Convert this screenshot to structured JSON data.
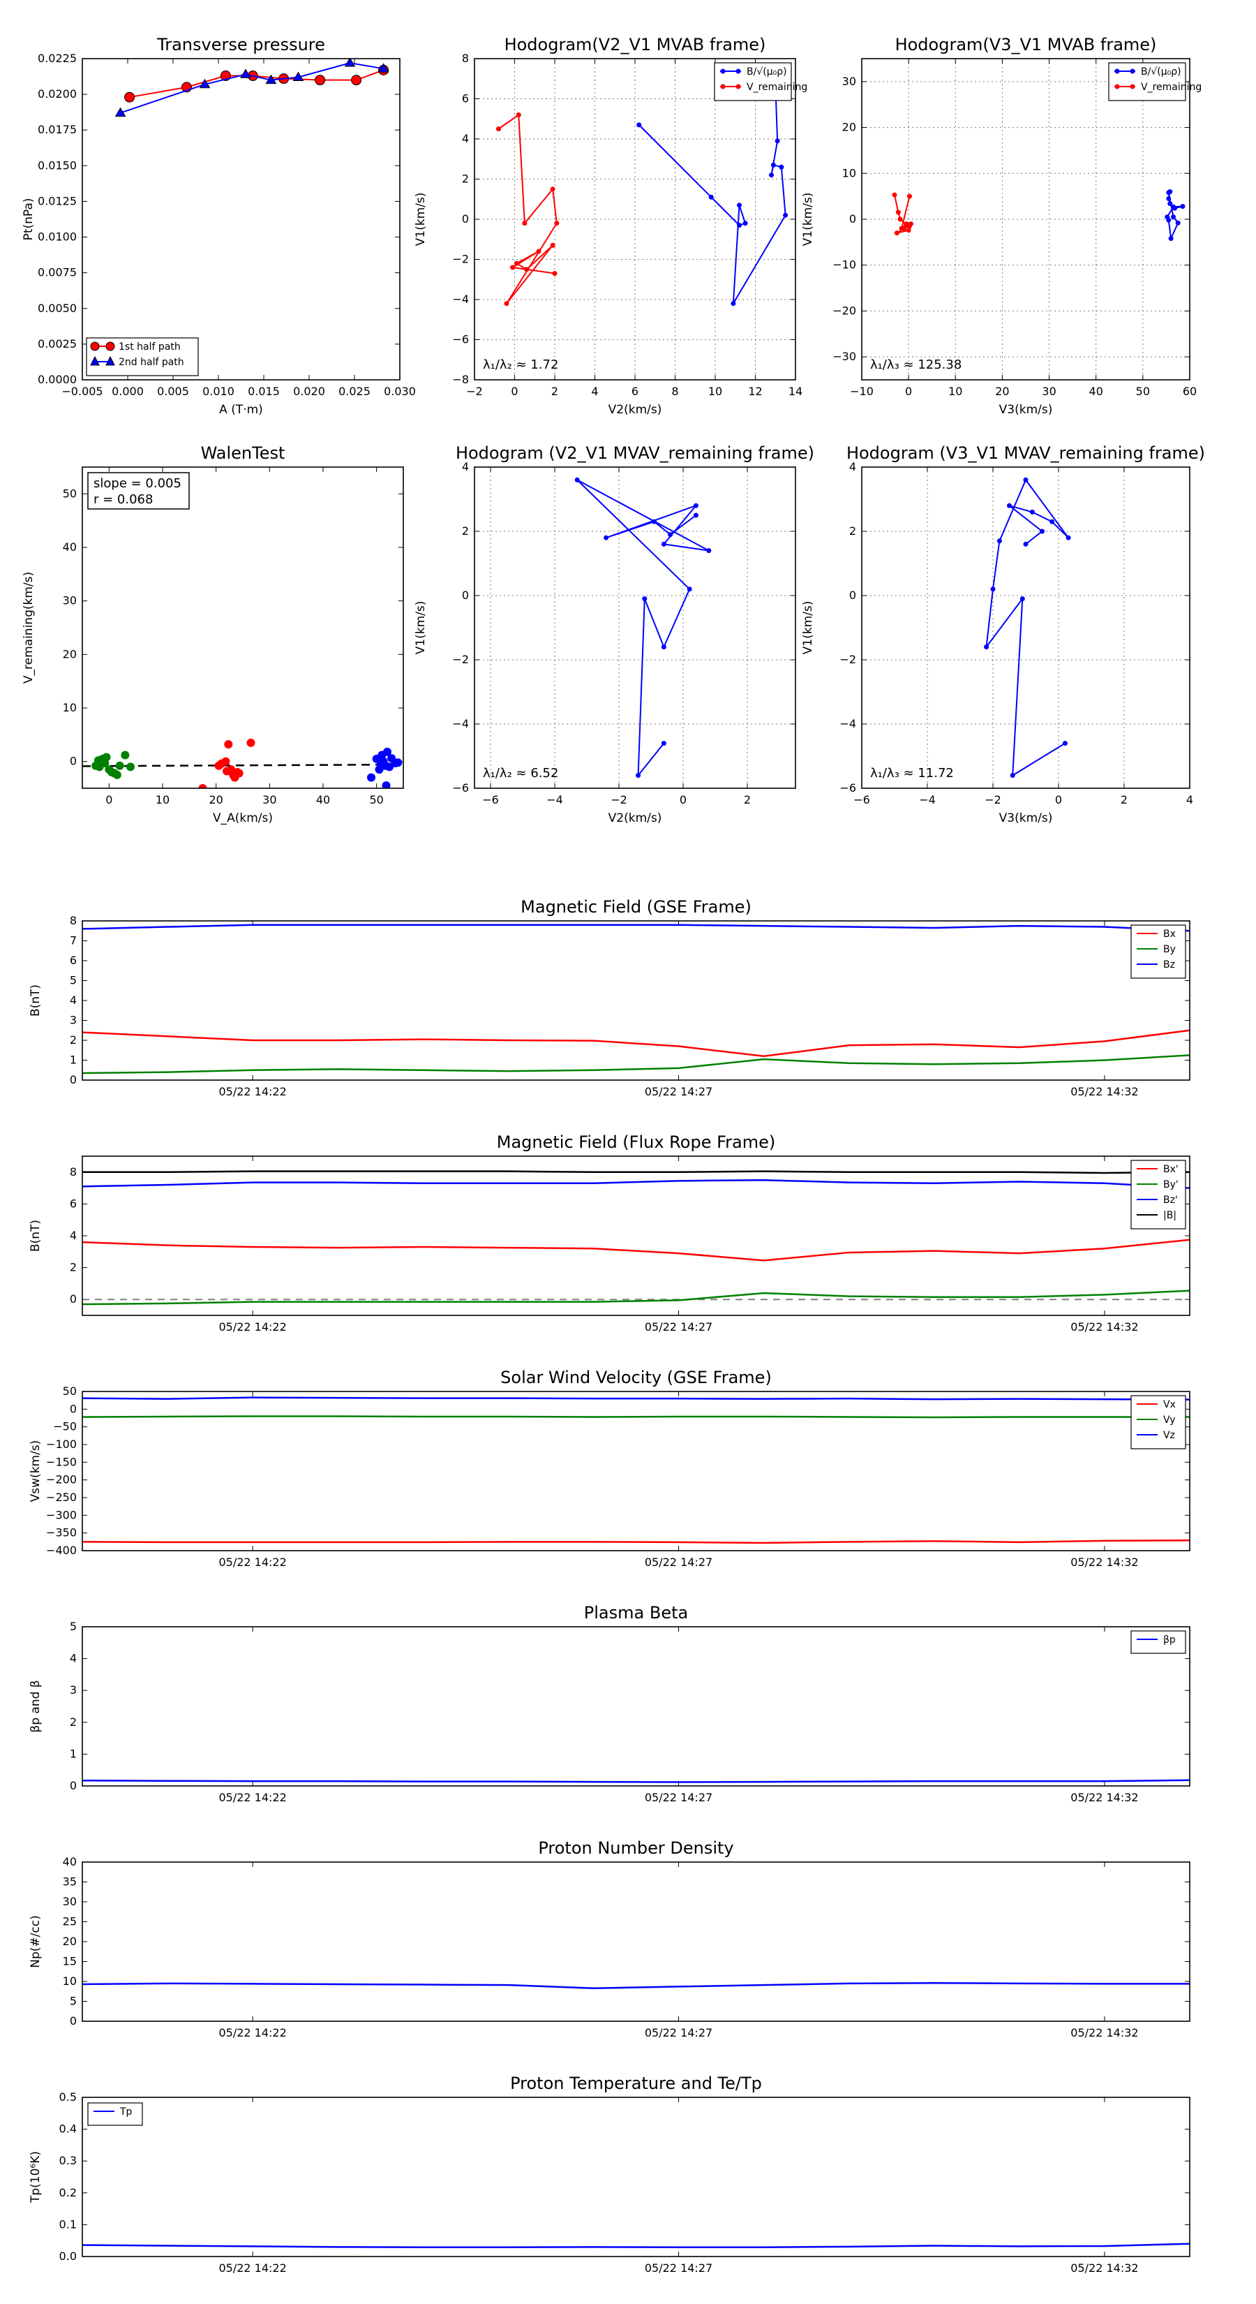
{
  "chart_data": [
    {
      "id": "tp",
      "type": "scatter",
      "title": "Transverse pressure",
      "xlabel": "A (T·m)",
      "ylabel": "Pt(nPa)",
      "xlim": [
        -0.005,
        0.03
      ],
      "ylim": [
        0,
        0.0225
      ],
      "xticks": [
        "−0.005",
        "0.000",
        "0.005",
        "0.010",
        "0.015",
        "0.020",
        "0.025",
        "0.030"
      ],
      "yticks": [
        "0.0000",
        "0.0025",
        "0.0050",
        "0.0075",
        "0.0100",
        "0.0125",
        "0.0150",
        "0.0175",
        "0.0200",
        "0.0225"
      ],
      "grid": false,
      "legend": "lower-left",
      "series": [
        {
          "name": "1st half path",
          "color": "#ff0000",
          "marker": "circle",
          "x": [
            0.0002,
            0.0065,
            0.0108,
            0.0138,
            0.0172,
            0.0212,
            0.0252,
            0.0282
          ],
          "y": [
            0.0198,
            0.0205,
            0.0213,
            0.0213,
            0.0211,
            0.021,
            0.021,
            0.0217
          ]
        },
        {
          "name": "2nd half path",
          "color": "#0000ff",
          "marker": "triangle",
          "x": [
            -0.0008,
            0.0085,
            0.013,
            0.0158,
            0.0188,
            0.0245,
            0.0282
          ],
          "y": [
            0.0187,
            0.0207,
            0.0214,
            0.021,
            0.0212,
            0.0222,
            0.0218
          ]
        }
      ]
    },
    {
      "id": "h1",
      "type": "line",
      "title": "Hodogram(V2_V1 MVAB frame)",
      "xlabel": "V2(km/s)",
      "ylabel": "V1(km/s)",
      "xlim": [
        -2,
        14
      ],
      "ylim": [
        -8,
        8
      ],
      "xticks": [
        "−2",
        "0",
        "2",
        "4",
        "6",
        "8",
        "10",
        "12",
        "14"
      ],
      "yticks": [
        "−8",
        "−6",
        "−4",
        "−2",
        "0",
        "2",
        "4",
        "6",
        "8"
      ],
      "grid": true,
      "legend": "top-right",
      "annotation": "λ₁/λ₂ ≈ 1.72",
      "series": [
        {
          "name": "B/√(μ₀ρ)",
          "color": "#0000ff",
          "x": [
            6.2,
            9.8,
            11.2,
            11.5,
            11.2,
            10.9,
            13.5,
            13.3,
            12.9,
            12.8,
            13.1,
            13.0
          ],
          "y": [
            4.7,
            1.1,
            -0.3,
            -0.2,
            0.7,
            -4.2,
            0.2,
            2.6,
            2.7,
            2.2,
            3.9,
            6.7
          ]
        },
        {
          "name": "V_remaining",
          "color": "#ff0000",
          "x": [
            -0.8,
            0.2,
            0.5,
            1.9,
            2.1,
            -0.4,
            1.9,
            0.6,
            0.1,
            1.2,
            -0.1,
            2.0
          ],
          "y": [
            4.5,
            5.2,
            -0.2,
            1.5,
            -0.2,
            -4.2,
            -1.3,
            -2.5,
            -2.2,
            -1.6,
            -2.4,
            -2.7
          ]
        }
      ]
    },
    {
      "id": "h2",
      "type": "line",
      "title": "Hodogram(V3_V1 MVAB frame)",
      "xlabel": "V3(km/s)",
      "ylabel": "V1(km/s)",
      "xlim": [
        -10,
        60
      ],
      "ylim": [
        -35,
        35
      ],
      "xticks": [
        "−10",
        "0",
        "10",
        "20",
        "30",
        "40",
        "50",
        "60"
      ],
      "yticks": [
        "−30",
        "−20",
        "−10",
        "0",
        "10",
        "20",
        "30"
      ],
      "grid": true,
      "legend": "top-right",
      "annotation": "λ₁/λ₃ ≈ 125.38",
      "series": [
        {
          "name": "B/√(μ₀ρ)",
          "color": "#0000ff",
          "x": [
            55.5,
            56.5,
            57.5,
            56.0,
            55.5,
            55.2,
            56.5,
            58.5,
            56.8,
            55.8,
            55.5,
            55.8
          ],
          "y": [
            5.8,
            0.5,
            -0.8,
            -4.2,
            -0.2,
            0.5,
            2.7,
            2.8,
            2.4,
            3.4,
            4.5,
            6.0
          ]
        },
        {
          "name": "V_remaining",
          "color": "#ff0000",
          "x": [
            -3.0,
            -2.2,
            -1.8,
            -0.5,
            0.5,
            0.0,
            -2.5,
            -1.0,
            0.2,
            -0.5,
            -1.5,
            0.2
          ],
          "y": [
            5.3,
            1.5,
            0.0,
            -1.2,
            -1.0,
            -2.4,
            -3.0,
            -2.0,
            -1.5,
            -1.0,
            -2.0,
            5.0
          ]
        }
      ]
    },
    {
      "id": "walen",
      "type": "scatter",
      "title": "WalenTest",
      "xlabel": "V_A(km/s)",
      "ylabel": "V_remaining(km/s)",
      "xlim": [
        -5,
        55
      ],
      "ylim": [
        -5,
        55
      ],
      "xticks": [
        "0",
        "10",
        "20",
        "30",
        "40",
        "50"
      ],
      "yticks": [
        "0",
        "10",
        "20",
        "30",
        "40",
        "50"
      ],
      "grid": false,
      "annotation": "slope = 0.005\nr = 0.068",
      "fit_line": {
        "slope": 0.005,
        "intercept": -0.85
      },
      "series": [
        {
          "name": "",
          "color": "#008000",
          "x": [
            -2.5,
            -2.0,
            -1.8,
            -1.2,
            -0.8,
            -0.5,
            0.0,
            0.5,
            1.0,
            2.0,
            3.0,
            4.0,
            -1.5,
            1.5
          ],
          "y": [
            -0.8,
            0.2,
            -1.0,
            0.5,
            -0.3,
            0.8,
            -1.5,
            -2.0,
            -2.2,
            -0.8,
            1.2,
            -1.0,
            -0.5,
            -2.5
          ]
        },
        {
          "name": "",
          "color": "#ff0000",
          "x": [
            17.5,
            20.5,
            21.0,
            21.8,
            22.3,
            22.8,
            23.2,
            23.5,
            24.0,
            22.0,
            24.3,
            26.5
          ],
          "y": [
            -5.0,
            -0.8,
            -0.4,
            0.0,
            3.2,
            -1.5,
            -2.5,
            -3.0,
            -2.0,
            -1.8,
            -2.2,
            3.5
          ]
        },
        {
          "name": "",
          "color": "#0000ff",
          "x": [
            49.0,
            50.0,
            50.5,
            51.0,
            51.3,
            51.6,
            52.0,
            52.4,
            52.8,
            53.5,
            54.0,
            51.8,
            50.8
          ],
          "y": [
            -3.0,
            0.5,
            -1.5,
            1.2,
            0.0,
            -0.8,
            1.8,
            -1.0,
            0.6,
            -0.3,
            -0.2,
            -4.5,
            -0.5
          ]
        }
      ]
    },
    {
      "id": "h3",
      "type": "line",
      "title": "Hodogram (V2_V1 MVAV_remaining frame)",
      "xlabel": "V2(km/s)",
      "ylabel": "V1(km/s)",
      "xlim": [
        -6.5,
        3.5
      ],
      "ylim": [
        -6,
        4
      ],
      "xticks": [
        "−6",
        "−4",
        "−2",
        "0",
        "2"
      ],
      "yticks": [
        "−6",
        "−4",
        "−2",
        "0",
        "2",
        "4"
      ],
      "grid": true,
      "annotation": "λ₁/λ₂ ≈ 6.52",
      "series": [
        {
          "name": "",
          "color": "#0000ff",
          "x": [
            -0.6,
            -1.4,
            -1.2,
            -0.6,
            0.2,
            -3.3,
            0.8,
            -0.6,
            0.4,
            -2.4,
            -0.9,
            -0.4,
            0.4
          ],
          "y": [
            -4.6,
            -5.6,
            -0.1,
            -1.6,
            0.2,
            3.6,
            1.4,
            1.6,
            2.8,
            1.8,
            2.3,
            1.9,
            2.5
          ]
        }
      ]
    },
    {
      "id": "h4",
      "type": "line",
      "title": "Hodogram (V3_V1 MVAV_remaining frame)",
      "xlabel": "V3(km/s)",
      "ylabel": "V1(km/s)",
      "xlim": [
        -6,
        4
      ],
      "ylim": [
        -6,
        4
      ],
      "xticks": [
        "−6",
        "−4",
        "−2",
        "0",
        "2",
        "4"
      ],
      "yticks": [
        "−6",
        "−4",
        "−2",
        "0",
        "2",
        "4"
      ],
      "grid": true,
      "annotation": "λ₁/λ₃ ≈ 11.72",
      "series": [
        {
          "name": "",
          "color": "#0000ff",
          "x": [
            0.2,
            -1.4,
            -1.1,
            -2.2,
            -2.0,
            -1.8,
            -1.0,
            0.3,
            -0.2,
            -0.8,
            -1.5,
            -0.5,
            -1.0
          ],
          "y": [
            -4.6,
            -5.6,
            -0.1,
            -1.6,
            0.2,
            1.7,
            3.6,
            1.8,
            2.3,
            2.6,
            2.8,
            2.0,
            1.6
          ]
        }
      ]
    },
    {
      "id": "ts1",
      "type": "line",
      "title": "Magnetic Field (GSE Frame)",
      "xlabel": "",
      "ylabel": "B(nT)",
      "xlim": [
        0,
        13
      ],
      "ylim": [
        0,
        8
      ],
      "xtick_pos": [
        2,
        7,
        12
      ],
      "xticks": [
        "05/22 14:22",
        "05/22 14:27",
        "05/22 14:32"
      ],
      "yticks": [
        "0",
        "1",
        "2",
        "3",
        "4",
        "5",
        "6",
        "7",
        "8"
      ],
      "ytick_vals": [
        0,
        1,
        2,
        3,
        4,
        5,
        6,
        7,
        8
      ],
      "legend": "top-right",
      "x": [
        0,
        1,
        2,
        3,
        4,
        5,
        6,
        7,
        8,
        9,
        10,
        11,
        12,
        13
      ],
      "series": [
        {
          "name": "Bx",
          "color": "#ff0000",
          "values": [
            2.4,
            2.2,
            2.0,
            2.0,
            2.05,
            2.0,
            1.98,
            1.7,
            1.2,
            1.75,
            1.8,
            1.65,
            1.95,
            2.5
          ]
        },
        {
          "name": "By",
          "color": "#008000",
          "values": [
            0.35,
            0.4,
            0.5,
            0.55,
            0.5,
            0.45,
            0.5,
            0.6,
            1.05,
            0.85,
            0.8,
            0.85,
            1.0,
            1.25
          ]
        },
        {
          "name": "Bz",
          "color": "#0000ff",
          "values": [
            7.6,
            7.7,
            7.8,
            7.8,
            7.8,
            7.8,
            7.8,
            7.8,
            7.75,
            7.7,
            7.65,
            7.75,
            7.7,
            7.5
          ]
        }
      ]
    },
    {
      "id": "ts2",
      "type": "line",
      "title": "Magnetic Field (Flux Rope Frame)",
      "xlabel": "",
      "ylabel": "B(nT)",
      "xlim": [
        0,
        13
      ],
      "ylim": [
        -1,
        9
      ],
      "xtick_pos": [
        2,
        7,
        12
      ],
      "xticks": [
        "05/22 14:22",
        "05/22 14:27",
        "05/22 14:32"
      ],
      "yticks": [
        "0",
        "2",
        "4",
        "6",
        "8"
      ],
      "ytick_vals": [
        0,
        2,
        4,
        6,
        8
      ],
      "legend": "top-right",
      "zero_line": true,
      "x": [
        0,
        1,
        2,
        3,
        4,
        5,
        6,
        7,
        8,
        9,
        10,
        11,
        12,
        13
      ],
      "series": [
        {
          "name": "Bx'",
          "color": "#ff0000",
          "values": [
            3.6,
            3.4,
            3.3,
            3.25,
            3.3,
            3.25,
            3.2,
            2.9,
            2.45,
            2.95,
            3.05,
            2.9,
            3.2,
            3.75
          ]
        },
        {
          "name": "By'",
          "color": "#008000",
          "values": [
            -0.3,
            -0.25,
            -0.15,
            -0.15,
            -0.15,
            -0.15,
            -0.15,
            -0.05,
            0.4,
            0.2,
            0.15,
            0.15,
            0.3,
            0.55
          ]
        },
        {
          "name": "Bz'",
          "color": "#0000ff",
          "values": [
            7.1,
            7.2,
            7.35,
            7.35,
            7.3,
            7.3,
            7.3,
            7.45,
            7.5,
            7.35,
            7.3,
            7.4,
            7.3,
            7.0
          ]
        },
        {
          "name": "|B|",
          "color": "#000000",
          "values": [
            8.0,
            8.0,
            8.05,
            8.05,
            8.05,
            8.05,
            8.0,
            8.0,
            8.05,
            8.0,
            8.0,
            8.0,
            7.95,
            8.0
          ]
        }
      ]
    },
    {
      "id": "ts3",
      "type": "line",
      "title": "Solar Wind Velocity (GSE Frame)",
      "xlabel": "",
      "ylabel": "Vsw(km/s)",
      "xlim": [
        0,
        13
      ],
      "ylim": [
        -400,
        50
      ],
      "xtick_pos": [
        2,
        7,
        12
      ],
      "xticks": [
        "05/22 14:22",
        "05/22 14:27",
        "05/22 14:32"
      ],
      "yticks": [
        "−400",
        "−350",
        "−300",
        "−250",
        "−200",
        "−150",
        "−100",
        "−50",
        "0",
        "50"
      ],
      "ytick_vals": [
        -400,
        -350,
        -300,
        -250,
        -200,
        -150,
        -100,
        -50,
        0,
        50
      ],
      "legend": "top-right",
      "x": [
        0,
        1,
        2,
        3,
        4,
        5,
        6,
        7,
        8,
        9,
        10,
        11,
        12,
        13
      ],
      "series": [
        {
          "name": "Vx",
          "color": "#ff0000",
          "values": [
            -375,
            -376,
            -376,
            -376,
            -376,
            -375,
            -375,
            -376,
            -378,
            -375,
            -373,
            -376,
            -372,
            -371
          ]
        },
        {
          "name": "Vy",
          "color": "#008000",
          "values": [
            -22,
            -21,
            -20,
            -20,
            -21,
            -21,
            -22,
            -21,
            -21,
            -22,
            -23,
            -22,
            -22,
            -22
          ]
        },
        {
          "name": "Vz",
          "color": "#0000ff",
          "values": [
            31,
            29,
            33,
            32,
            31,
            31,
            30,
            30,
            29,
            30,
            28,
            29,
            28,
            27
          ]
        }
      ]
    },
    {
      "id": "ts4",
      "type": "line",
      "title": "Plasma Beta",
      "xlabel": "",
      "ylabel": "βp and β",
      "xlim": [
        0,
        13
      ],
      "ylim": [
        0,
        5
      ],
      "xtick_pos": [
        2,
        7,
        12
      ],
      "xticks": [
        "05/22 14:22",
        "05/22 14:27",
        "05/22 14:32"
      ],
      "yticks": [
        "0",
        "1",
        "2",
        "3",
        "4",
        "5"
      ],
      "ytick_vals": [
        0,
        1,
        2,
        3,
        4,
        5
      ],
      "legend": "top-right",
      "x": [
        0,
        1,
        2,
        3,
        4,
        5,
        6,
        7,
        8,
        9,
        10,
        11,
        12,
        13
      ],
      "series": [
        {
          "name": "βp",
          "color": "#0000ff",
          "values": [
            0.17,
            0.16,
            0.15,
            0.15,
            0.14,
            0.14,
            0.13,
            0.12,
            0.13,
            0.14,
            0.15,
            0.15,
            0.15,
            0.18
          ]
        }
      ]
    },
    {
      "id": "ts5",
      "type": "line",
      "title": "Proton Number Density",
      "xlabel": "",
      "ylabel": "Np(#/cc)",
      "xlim": [
        0,
        13
      ],
      "ylim": [
        0,
        40
      ],
      "xtick_pos": [
        2,
        7,
        12
      ],
      "xticks": [
        "05/22 14:22",
        "05/22 14:27",
        "05/22 14:32"
      ],
      "yticks": [
        "0",
        "5",
        "10",
        "15",
        "20",
        "25",
        "30",
        "35",
        "40"
      ],
      "ytick_vals": [
        0,
        5,
        10,
        15,
        20,
        25,
        30,
        35,
        40
      ],
      "x": [
        0,
        1,
        2,
        3,
        4,
        5,
        6,
        7,
        8,
        9,
        10,
        11,
        12,
        13
      ],
      "series": [
        {
          "name": "",
          "color": "#0000ff",
          "values": [
            9.3,
            9.5,
            9.4,
            9.3,
            9.2,
            9.1,
            8.3,
            8.7,
            9.1,
            9.5,
            9.6,
            9.5,
            9.4,
            9.4
          ]
        }
      ]
    },
    {
      "id": "ts6",
      "type": "line",
      "title": "Proton Temperature and Te/Tp",
      "xlabel": "",
      "ylabel": "Tp(10⁶K)",
      "xlim": [
        0,
        13
      ],
      "ylim": [
        0,
        0.5
      ],
      "xtick_pos": [
        2,
        7,
        12
      ],
      "xticks": [
        "05/22 14:22",
        "05/22 14:27",
        "05/22 14:32"
      ],
      "yticks": [
        "0.0",
        "0.1",
        "0.2",
        "0.3",
        "0.4",
        "0.5"
      ],
      "ytick_vals": [
        0,
        0.1,
        0.2,
        0.3,
        0.4,
        0.5
      ],
      "legend": "top-left",
      "x": [
        0,
        1,
        2,
        3,
        4,
        5,
        6,
        7,
        8,
        9,
        10,
        11,
        12,
        13
      ],
      "series": [
        {
          "name": "Tp",
          "color": "#0000ff",
          "values": [
            0.036,
            0.034,
            0.032,
            0.03,
            0.029,
            0.029,
            0.03,
            0.029,
            0.029,
            0.031,
            0.034,
            0.032,
            0.033,
            0.04
          ]
        }
      ]
    }
  ]
}
